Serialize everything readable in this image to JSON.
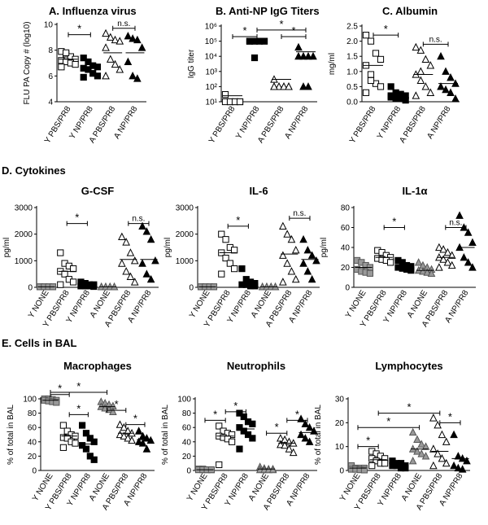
{
  "sections": {
    "d": "D. Cytokines",
    "e": "E. Cells in BAL"
  },
  "chart_data": [
    {
      "id": "A",
      "type": "scatter",
      "title": "A. Influenza virus",
      "ylabel": "FLU PA Copy # (log10)",
      "ylim": [
        4,
        10
      ],
      "yticks": [
        4,
        6,
        8,
        10
      ],
      "categories": [
        "Y PBS/PR8",
        "Y NP/PR8",
        "A PBS/PR8",
        "A NP/PR8"
      ],
      "markers": [
        "square-open",
        "square-filled",
        "triangle-open",
        "triangle-filled"
      ],
      "values": [
        [
          7.9,
          7.7,
          7.5,
          7.3,
          7.2,
          7.1,
          7.0,
          6.9,
          6.7,
          7.8
        ],
        [
          7.4,
          7.1,
          6.8,
          6.7,
          6.6,
          6.5,
          6.2,
          6.0,
          5.9
        ],
        [
          9.3,
          9.0,
          8.8,
          8.7,
          8.2,
          7.3,
          6.9,
          6.5,
          6.0
        ],
        [
          9.1,
          8.9,
          8.8,
          8.2,
          7.1,
          6.0,
          5.8
        ]
      ],
      "means": [
        7.3,
        6.6,
        7.8,
        7.8
      ],
      "significance": [
        {
          "from": 0,
          "to": 1,
          "label": "*",
          "y": 9.2
        },
        {
          "from": 2,
          "to": 3,
          "label": "n.s.",
          "y": 9.7
        }
      ]
    },
    {
      "id": "B",
      "type": "scatter",
      "title": "B. Anti-NP IgG Titers",
      "ylabel": "IgG titer",
      "scale": "log",
      "ylim": [
        10,
        1000000
      ],
      "yticks": [
        "10¹",
        "10²",
        "10³",
        "10⁴",
        "10⁵",
        "10⁶"
      ],
      "categories": [
        "Y PBS/PR8",
        "Y NP/PR8",
        "A PBS/PR8",
        "A NP/PR8"
      ],
      "markers": [
        "square-open",
        "square-filled",
        "triangle-open",
        "triangle-filled"
      ],
      "values": [
        [
          30,
          10,
          10,
          10,
          10,
          10,
          10,
          10
        ],
        [
          100000,
          100000,
          100000,
          100000,
          100000,
          100000,
          100000,
          100000,
          100000,
          8000
        ],
        [
          300,
          100,
          100,
          100,
          100,
          100,
          100,
          100,
          100
        ],
        [
          40000,
          10000,
          10000,
          10000,
          10000,
          100,
          100
        ]
      ],
      "means": [
        25,
        100000,
        300,
        20000
      ],
      "significance": [
        {
          "from": 0,
          "to": 1,
          "label": "*",
          "y": 200000
        },
        {
          "from": 2,
          "to": 3,
          "label": "*",
          "y": 200000
        },
        {
          "from": 1,
          "to": 3,
          "label": "*",
          "y": 550000
        }
      ]
    },
    {
      "id": "C",
      "type": "scatter",
      "title": "C. Albumin",
      "ylabel": "mg/ml",
      "ylim": [
        0,
        2.5
      ],
      "yticks": [
        0.0,
        0.5,
        1.0,
        1.5,
        2.0,
        2.5
      ],
      "categories": [
        "Y PBS/PR8",
        "Y NP/PR8",
        "A PBS/PR8",
        "A NP/PR8"
      ],
      "markers": [
        "square-open",
        "square-filled",
        "triangle-open",
        "triangle-filled"
      ],
      "values": [
        [
          2.2,
          2.0,
          1.6,
          1.4,
          1.2,
          0.9,
          0.6,
          0.5,
          0.3,
          0.7
        ],
        [
          0.5,
          0.3,
          0.25,
          0.2,
          0.15,
          0.1,
          0.1,
          0.05,
          0.2
        ],
        [
          1.8,
          1.7,
          1.4,
          1.2,
          0.9,
          0.7,
          0.5,
          0.3,
          0.2,
          1.0
        ],
        [
          1.5,
          1.0,
          0.8,
          0.6,
          0.5,
          0.4,
          0.3,
          0.1
        ]
      ],
      "means": [
        1.2,
        0.2,
        0.9,
        0.6
      ],
      "significance": [
        {
          "from": 0,
          "to": 1,
          "label": "*",
          "y": 2.2
        },
        {
          "from": 2,
          "to": 3,
          "label": "n.s.",
          "y": 1.9
        }
      ]
    },
    {
      "id": "D1",
      "type": "scatter",
      "title": "G-CSF",
      "ylabel": "pg/ml",
      "ylim": [
        0,
        3000
      ],
      "yticks": [
        0,
        1000,
        2000,
        3000
      ],
      "categories": [
        "Y NONE",
        "Y PBS/PR8",
        "Y NP/PR8",
        "A NONE",
        "A PBS/PR8",
        "A NP/PR8"
      ],
      "markers": [
        "square-gray",
        "square-open",
        "square-filled",
        "triangle-gray",
        "triangle-open",
        "triangle-filled"
      ],
      "values": [
        [
          20,
          20,
          20,
          20,
          20,
          20,
          20,
          20
        ],
        [
          1300,
          900,
          800,
          700,
          600,
          500,
          300,
          200,
          100
        ],
        [
          200,
          150,
          100,
          100,
          50,
          50,
          50,
          30
        ],
        [
          20,
          20,
          20,
          20,
          20,
          20,
          20,
          20
        ],
        [
          1900,
          1700,
          1300,
          1000,
          900,
          600,
          400,
          200
        ],
        [
          2300,
          2100,
          1800,
          1000,
          900,
          500,
          300
        ]
      ],
      "means": [
        20,
        600,
        80,
        20,
        1050,
        1050
      ],
      "significance": [
        {
          "from": 1,
          "to": 2,
          "label": "*",
          "y": 2400
        },
        {
          "from": 4,
          "to": 5,
          "label": "n.s.",
          "y": 2400
        }
      ]
    },
    {
      "id": "D2",
      "type": "scatter",
      "title": "IL-6",
      "ylabel": "pg/ml",
      "ylim": [
        0,
        3000
      ],
      "yticks": [
        0,
        1000,
        2000,
        3000
      ],
      "categories": [
        "Y NONE",
        "Y PBS/PR8",
        "Y NP/PR8",
        "A NONE",
        "A PBS/PR8",
        "A NP/PR8"
      ],
      "markers": [
        "square-gray",
        "square-open",
        "square-filled",
        "triangle-gray",
        "triangle-open",
        "triangle-filled"
      ],
      "values": [
        [
          20,
          20,
          20,
          20,
          20,
          20,
          20,
          20
        ],
        [
          2000,
          1800,
          1500,
          1400,
          1300,
          1100,
          900,
          700,
          500
        ],
        [
          700,
          300,
          200,
          150,
          100,
          100,
          50,
          50
        ],
        [
          20,
          20,
          20,
          20,
          20,
          20,
          20,
          20
        ],
        [
          2300,
          2000,
          1800,
          1400,
          1200,
          900,
          600,
          300,
          200
        ],
        [
          1800,
          1400,
          1200,
          1000,
          900,
          600,
          300
        ]
      ],
      "means": [
        20,
        1300,
        150,
        20,
        1250,
        1050
      ],
      "significance": [
        {
          "from": 1,
          "to": 2,
          "label": "*",
          "y": 2300
        },
        {
          "from": 4,
          "to": 5,
          "label": "n.s.",
          "y": 2600
        }
      ]
    },
    {
      "id": "D3",
      "type": "scatter",
      "title": "IL-1α",
      "ylabel": "pg/ml",
      "ylim": [
        0,
        80
      ],
      "yticks": [
        0,
        20,
        40,
        60,
        80
      ],
      "categories": [
        "Y NONE",
        "Y PBS/PR8",
        "Y NP/PR8",
        "A NONE",
        "A PBS/PR8",
        "A NP/PR8"
      ],
      "markers": [
        "square-gray",
        "square-open",
        "square-filled",
        "triangle-gray",
        "triangle-open",
        "triangle-filled"
      ],
      "values": [
        [
          27,
          25,
          22,
          20,
          18,
          16,
          15,
          14
        ],
        [
          37,
          35,
          32,
          30,
          29,
          28,
          27,
          25
        ],
        [
          27,
          25,
          22,
          21,
          20,
          19,
          18,
          17
        ],
        [
          25,
          22,
          20,
          18,
          17,
          16,
          15,
          14
        ],
        [
          40,
          38,
          35,
          32,
          30,
          28,
          25,
          22,
          20
        ],
        [
          72,
          60,
          55,
          45,
          40,
          30,
          25,
          20
        ]
      ],
      "means": [
        20,
        30,
        20,
        17,
        30,
        40
      ],
      "significance": [
        {
          "from": 1,
          "to": 2,
          "label": "*",
          "y": 60
        },
        {
          "from": 4,
          "to": 5,
          "label": "n.s.",
          "y": 60
        }
      ]
    },
    {
      "id": "E1",
      "type": "scatter",
      "title": "Macrophages",
      "ylabel": "% of total in BAL",
      "ylim": [
        0,
        100
      ],
      "yticks": [
        0,
        20,
        40,
        60,
        80,
        100
      ],
      "categories": [
        "Y NONE",
        "Y PBS/PR8",
        "Y NP/PR8",
        "A NONE",
        "A PBS/PR8",
        "A NP/PR8"
      ],
      "markers": [
        "square-gray",
        "square-open",
        "square-filled",
        "triangle-gray",
        "triangle-open",
        "triangle-filled"
      ],
      "values": [
        [
          100,
          100,
          99,
          98,
          98,
          97,
          96,
          95
        ],
        [
          63,
          55,
          50,
          48,
          46,
          45,
          40,
          38,
          32
        ],
        [
          63,
          52,
          45,
          40,
          35,
          30,
          20,
          15
        ],
        [
          96,
          94,
          92,
          90,
          89,
          87,
          85,
          82
        ],
        [
          64,
          60,
          55,
          52,
          50,
          48,
          45,
          42
        ],
        [
          55,
          48,
          45,
          42,
          40,
          38,
          30
        ]
      ],
      "means": [
        98,
        48,
        37,
        89,
        52,
        43
      ],
      "significance": [
        {
          "from": 0,
          "to": 1,
          "label": "*",
          "y": 106
        },
        {
          "from": 1,
          "to": 2,
          "label": "*",
          "y": 78
        },
        {
          "from": 0,
          "to": 3,
          "label": "*",
          "y": 116
        },
        {
          "from": 3,
          "to": 4,
          "label": "*",
          "y": 84
        },
        {
          "from": 4,
          "to": 5,
          "label": "*",
          "y": 64
        }
      ]
    },
    {
      "id": "E2",
      "type": "scatter",
      "title": "Neutrophils",
      "ylabel": "% of total in BAL",
      "ylim": [
        0,
        100
      ],
      "yticks": [
        0,
        20,
        40,
        60,
        80,
        100
      ],
      "categories": [
        "Y NONE",
        "Y PBS/PR8",
        "Y NP/PR8",
        "A NONE",
        "A PBS/PR8",
        "A NP/PR8"
      ],
      "markers": [
        "square-gray",
        "square-open",
        "square-filled",
        "triangle-gray",
        "triangle-open",
        "triangle-filled"
      ],
      "values": [
        [
          2,
          2,
          1,
          1,
          1,
          1,
          1,
          1
        ],
        [
          62,
          55,
          52,
          50,
          48,
          46,
          44,
          40,
          8
        ],
        [
          80,
          75,
          68,
          65,
          60,
          55,
          50,
          45,
          30
        ],
        [
          5,
          3,
          2,
          2,
          1,
          1,
          1,
          1
        ],
        [
          45,
          43,
          40,
          38,
          36,
          35,
          30,
          25
        ],
        [
          72,
          65,
          60,
          55,
          50,
          45,
          40
        ]
      ],
      "means": [
        1,
        48,
        58,
        2,
        38,
        53
      ],
      "significance": [
        {
          "from": 0,
          "to": 1,
          "label": "*",
          "y": 70
        },
        {
          "from": 1,
          "to": 2,
          "label": "*",
          "y": 82
        },
        {
          "from": 3,
          "to": 4,
          "label": "*",
          "y": 52
        },
        {
          "from": 4,
          "to": 5,
          "label": "*",
          "y": 70
        }
      ]
    },
    {
      "id": "E3",
      "type": "scatter",
      "title": "Lymphocytes",
      "ylabel": "% of total in BAL",
      "ylim": [
        0,
        30
      ],
      "yticks": [
        0,
        10,
        20,
        30
      ],
      "categories": [
        "Y NONE",
        "Y PBS/PR8",
        "Y NP/PR8",
        "A NONE",
        "A PBS/PR8",
        "A NP/PR8"
      ],
      "markers": [
        "square-gray",
        "square-open",
        "square-filled",
        "triangle-gray",
        "triangle-open",
        "triangle-filled"
      ],
      "values": [
        [
          2,
          1,
          1,
          1,
          0.5,
          0.5,
          0.3,
          0.2
        ],
        [
          8,
          7,
          6,
          5,
          5,
          4,
          3,
          3,
          2
        ],
        [
          4,
          3,
          3,
          2,
          2,
          2,
          1,
          1
        ],
        [
          16,
          13,
          11,
          10,
          9,
          8,
          7,
          6,
          4
        ],
        [
          22,
          19,
          15,
          12,
          9,
          7,
          5,
          3,
          2
        ],
        [
          15,
          6,
          5,
          4,
          2,
          1,
          0.5
        ]
      ],
      "means": [
        1,
        4.5,
        2.5,
        9,
        8,
        5
      ],
      "significance": [
        {
          "from": 0,
          "to": 1,
          "label": "*",
          "y": 10
        },
        {
          "from": 1,
          "to": 4,
          "label": "*",
          "y": 24
        },
        {
          "from": 0,
          "to": 3,
          "label": "*",
          "y": 18
        },
        {
          "from": 4,
          "to": 5,
          "label": "*",
          "y": 20
        }
      ]
    }
  ]
}
